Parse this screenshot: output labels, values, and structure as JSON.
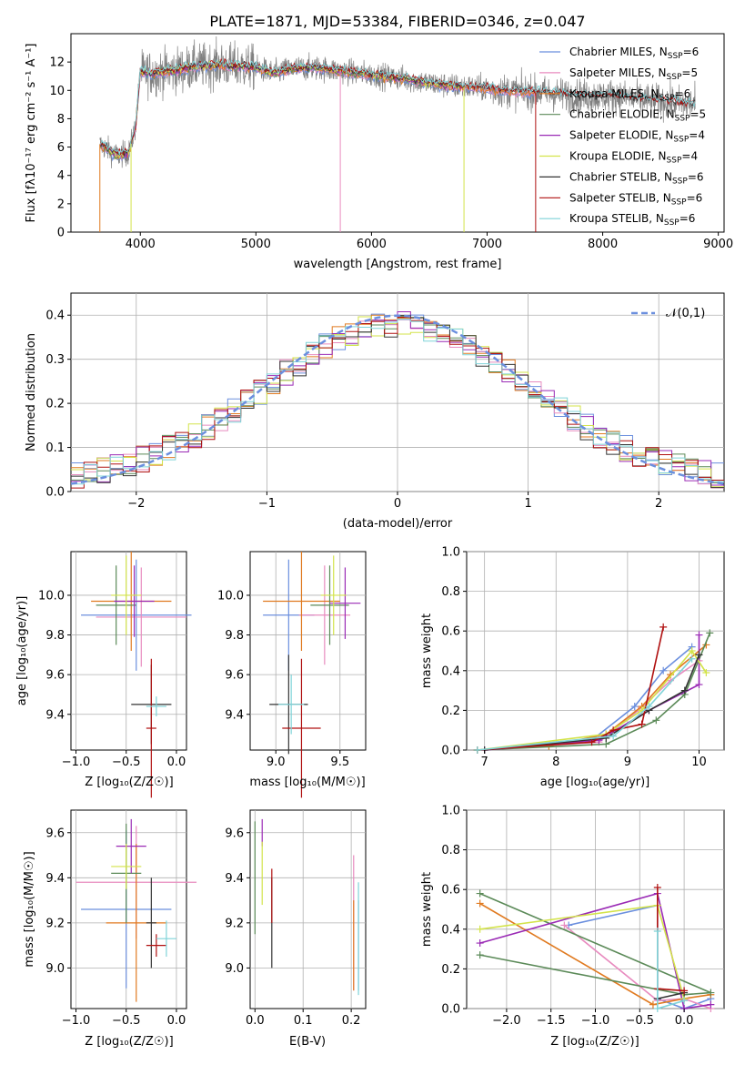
{
  "chart_data": [
    {
      "id": "spectrum",
      "type": "line",
      "title": "PLATE=1871, MJD=53384, FIBERID=0346, z=0.047",
      "xlabel": "wavelength [Angstrom, rest frame]",
      "ylabel": "Flux [fλ10⁻¹⁷ erg cm⁻² s⁻¹ A⁻¹]",
      "xlim": [
        3400,
        9050
      ],
      "ylim": [
        0,
        14
      ],
      "xticks": [
        4000,
        5000,
        6000,
        7000,
        8000,
        9000
      ],
      "yticks": [
        0,
        2,
        4,
        6,
        8,
        10,
        12
      ],
      "legend_position": "right",
      "data_line": {
        "color": "#808080",
        "lambda_range": [
          3650,
          8800
        ]
      },
      "continuum_points": [
        [
          3650,
          6.2
        ],
        [
          3800,
          5.4
        ],
        [
          3900,
          5.6
        ],
        [
          3960,
          7.5
        ],
        [
          4000,
          11.3
        ],
        [
          4100,
          11.2
        ],
        [
          4300,
          11.4
        ],
        [
          4500,
          11.7
        ],
        [
          4700,
          11.8
        ],
        [
          4850,
          11.7
        ],
        [
          5000,
          11.6
        ],
        [
          5150,
          11.2
        ],
        [
          5300,
          11.5
        ],
        [
          5500,
          11.6
        ],
        [
          5700,
          11.4
        ],
        [
          5900,
          11.2
        ],
        [
          6100,
          11.0
        ],
        [
          6300,
          10.8
        ],
        [
          6500,
          10.5
        ],
        [
          6700,
          10.3
        ],
        [
          6900,
          10.2
        ],
        [
          7100,
          10.0
        ],
        [
          7300,
          9.9
        ],
        [
          7500,
          9.8
        ],
        [
          7800,
          9.6
        ],
        [
          8100,
          9.6
        ],
        [
          8400,
          9.3
        ],
        [
          8800,
          9.0
        ]
      ],
      "model_gaps": [
        {
          "series": 2,
          "lambda": 3650
        },
        {
          "series": 5,
          "lambda": 3920
        },
        {
          "series": 1,
          "lambda": 5730
        },
        {
          "series": 5,
          "lambda": 6800
        },
        {
          "series": 7,
          "lambda": 7420
        }
      ],
      "series": [
        {
          "name": "Chabrier MILES",
          "nssp": "6",
          "color": "#6b8fde",
          "end": 7420
        },
        {
          "name": "Salpeter MILES",
          "nssp": "5",
          "color": "#e88bbf",
          "end": 7420
        },
        {
          "name": "Kroupa MILES",
          "nssp": "6",
          "color": "#e07a20",
          "end": 7420
        },
        {
          "name": "Chabrier ELODIE",
          "nssp": "5",
          "color": "#5b8a58",
          "end": 6800
        },
        {
          "name": "Salpeter ELODIE",
          "nssp": "4",
          "color": "#9a2ab5",
          "end": 6800
        },
        {
          "name": "Kroupa ELODIE",
          "nssp": "4",
          "color": "#d3e34a",
          "end": 6800
        },
        {
          "name": "Chabrier STELIB",
          "nssp": "6",
          "color": "#333333",
          "end": 8800
        },
        {
          "name": "Salpeter STELIB",
          "nssp": "6",
          "color": "#b01010",
          "end": 8800
        },
        {
          "name": "Kroupa STELIB",
          "nssp": "6",
          "color": "#7fd3d8",
          "end": 8800
        }
      ]
    },
    {
      "id": "residual-histogram",
      "type": "line",
      "xlabel": "(data-model)/error",
      "ylabel": "Normed distribution",
      "xlim": [
        -2.5,
        2.5
      ],
      "ylim": [
        0,
        0.45
      ],
      "xticks": [
        -2,
        -1,
        0,
        1,
        2
      ],
      "yticks": [
        0.0,
        0.1,
        0.2,
        0.3,
        0.4
      ],
      "grid": true,
      "legend_position": "top-right",
      "reference_curve": {
        "label": "𝒩(0,1)",
        "color": "#6b8fde",
        "style": "dashed"
      },
      "bin_width": 0.1,
      "bin_start": -2.5
    },
    {
      "id": "age-vs-Z",
      "type": "scatter",
      "xlabel": "Z [log₁₀(Z/Z☉)]",
      "ylabel": "age  [log₁₀(age/yr)]",
      "xlim": [
        -1.05,
        0.1
      ],
      "ylim": [
        9.22,
        10.22
      ],
      "xticks": [
        -1.0,
        -0.5,
        0.0
      ],
      "yticks": [
        9.4,
        9.6,
        9.8,
        10.0
      ],
      "grid": true,
      "points": [
        {
          "series": 0,
          "x": -0.4,
          "xerr": 0.55,
          "y": 9.9,
          "yerr": 0.28
        },
        {
          "series": 1,
          "x": -0.35,
          "xerr": 0.45,
          "y": 9.89,
          "yerr": 0.25
        },
        {
          "series": 2,
          "x": -0.45,
          "xerr": 0.4,
          "y": 9.97,
          "yerr": 0.25
        },
        {
          "series": 3,
          "x": -0.6,
          "xerr": 0.2,
          "y": 9.95,
          "yerr": 0.2
        },
        {
          "series": 4,
          "x": -0.42,
          "xerr": 0.2,
          "y": 9.97,
          "yerr": 0.18
        },
        {
          "series": 5,
          "x": -0.5,
          "xerr": 0.15,
          "y": 10.0,
          "yerr": 0.2
        },
        {
          "series": 6,
          "x": -0.25,
          "xerr": 0.2,
          "y": 9.45,
          "yerr": 0.2
        },
        {
          "series": 7,
          "x": -0.25,
          "xerr": 0.05,
          "y": 9.33,
          "yerr": 0.35
        },
        {
          "series": 8,
          "x": -0.2,
          "xerr": 0.1,
          "y": 9.44,
          "yerr": 0.05
        }
      ]
    },
    {
      "id": "age-vs-mass",
      "type": "scatter",
      "xlabel": "mass [log₁₀(M/M☉)]",
      "ylabel": "",
      "xlim": [
        8.8,
        9.7
      ],
      "ylim": [
        9.22,
        10.22
      ],
      "xticks": [
        9.0,
        9.5
      ],
      "yticks": [
        9.4,
        9.6,
        9.8,
        10.0
      ],
      "grid": true,
      "points": [
        {
          "series": 0,
          "x": 9.1,
          "xerr": 0.2,
          "y": 9.9,
          "yerr": 0.28
        },
        {
          "series": 1,
          "x": 9.38,
          "xerr": 0.2,
          "y": 9.9,
          "yerr": 0.25
        },
        {
          "series": 2,
          "x": 9.2,
          "xerr": 0.3,
          "y": 9.97,
          "yerr": 0.25
        },
        {
          "series": 3,
          "x": 9.42,
          "xerr": 0.15,
          "y": 9.95,
          "yerr": 0.2
        },
        {
          "series": 4,
          "x": 9.54,
          "xerr": 0.12,
          "y": 9.96,
          "yerr": 0.18
        },
        {
          "series": 5,
          "x": 9.45,
          "xerr": 0.1,
          "y": 10.0,
          "yerr": 0.2
        },
        {
          "series": 6,
          "x": 9.1,
          "xerr": 0.15,
          "y": 9.45,
          "yerr": 0.25
        },
        {
          "series": 7,
          "x": 9.2,
          "xerr": 0.15,
          "y": 9.33,
          "yerr": 0.35
        },
        {
          "series": 8,
          "x": 9.12,
          "xerr": 0.1,
          "y": 9.45,
          "yerr": 0.15
        }
      ]
    },
    {
      "id": "mass-weight-vs-age",
      "type": "line",
      "xlabel": "age  [log₁₀(age/yr)]",
      "ylabel": "mass weight",
      "xlim": [
        6.75,
        10.35
      ],
      "ylim": [
        0,
        1.0
      ],
      "xticks": [
        7,
        8,
        9,
        10
      ],
      "yticks": [
        0.0,
        0.2,
        0.4,
        0.6,
        0.8,
        1.0
      ],
      "grid": true,
      "series": [
        {
          "series": 0,
          "points": [
            [
              6.9,
              0.0
            ],
            [
              8.5,
              0.05
            ],
            [
              9.1,
              0.22
            ],
            [
              9.5,
              0.4
            ],
            [
              9.9,
              0.52
            ]
          ]
        },
        {
          "series": 1,
          "points": [
            [
              6.9,
              0.0
            ],
            [
              8.6,
              0.04
            ],
            [
              9.15,
              0.2
            ],
            [
              9.6,
              0.35
            ],
            [
              10.0,
              0.45
            ]
          ]
        },
        {
          "series": 2,
          "points": [
            [
              6.9,
              0.0
            ],
            [
              7.9,
              0.02
            ],
            [
              8.7,
              0.08
            ],
            [
              9.2,
              0.22
            ],
            [
              9.6,
              0.38
            ],
            [
              10.1,
              0.53
            ]
          ]
        },
        {
          "series": 3,
          "points": [
            [
              6.9,
              0.0
            ],
            [
              8.7,
              0.03
            ],
            [
              9.4,
              0.15
            ],
            [
              9.8,
              0.28
            ],
            [
              10.15,
              0.59
            ]
          ]
        },
        {
          "series": 4,
          "points": [
            [
              7.0,
              0.0
            ],
            [
              8.6,
              0.05
            ],
            [
              9.3,
              0.2
            ],
            [
              10.0,
              0.33
            ],
            [
              10.0,
              0.58
            ]
          ]
        },
        {
          "series": 5,
          "points": [
            [
              6.9,
              0.0
            ],
            [
              8.7,
              0.08
            ],
            [
              9.2,
              0.2
            ],
            [
              9.9,
              0.5
            ],
            [
              10.1,
              0.39
            ]
          ]
        },
        {
          "series": 6,
          "points": [
            [
              7.0,
              0.0
            ],
            [
              8.7,
              0.06
            ],
            [
              9.3,
              0.2
            ],
            [
              9.8,
              0.3
            ],
            [
              10.0,
              0.48
            ]
          ]
        },
        {
          "series": 7,
          "points": [
            [
              6.9,
              0.0
            ],
            [
              8.5,
              0.04
            ],
            [
              8.8,
              0.1
            ],
            [
              9.2,
              0.13
            ],
            [
              9.5,
              0.62
            ]
          ]
        },
        {
          "series": 8,
          "points": [
            [
              6.9,
              0.0
            ],
            [
              8.8,
              0.07
            ],
            [
              9.3,
              0.22
            ],
            [
              9.9,
              0.46
            ]
          ]
        }
      ]
    },
    {
      "id": "mass-vs-Z",
      "type": "scatter",
      "xlabel": "Z [log₁₀(Z/Z☉)]",
      "ylabel": "mass [log₁₀(M/M☉)]",
      "xlim": [
        -1.05,
        0.1
      ],
      "ylim": [
        8.82,
        9.7
      ],
      "xticks": [
        -1.0,
        -0.5,
        0.0
      ],
      "yticks": [
        9.0,
        9.2,
        9.4,
        9.6
      ],
      "grid": true,
      "points": [
        {
          "series": 0,
          "x": -0.5,
          "xerr": 0.45,
          "y": 9.26,
          "yerr": 0.35
        },
        {
          "series": 1,
          "x": -0.4,
          "xerr": 0.6,
          "y": 9.38,
          "yerr": 0.25
        },
        {
          "series": 2,
          "x": -0.4,
          "xerr": 0.3,
          "y": 9.2,
          "yerr": 0.35
        },
        {
          "series": 3,
          "x": -0.5,
          "xerr": 0.15,
          "y": 9.42,
          "yerr": 0.22
        },
        {
          "series": 4,
          "x": -0.45,
          "xerr": 0.15,
          "y": 9.54,
          "yerr": 0.12
        },
        {
          "series": 5,
          "x": -0.5,
          "xerr": 0.15,
          "y": 9.45,
          "yerr": 0.1
        },
        {
          "series": 6,
          "x": -0.25,
          "xerr": 0.05,
          "y": 9.2,
          "yerr": 0.2
        },
        {
          "series": 7,
          "x": -0.2,
          "xerr": 0.1,
          "y": 9.1,
          "yerr": 0.05
        },
        {
          "series": 8,
          "x": -0.1,
          "xerr": 0.1,
          "y": 9.13,
          "yerr": 0.08
        }
      ]
    },
    {
      "id": "mass-vs-EBV",
      "type": "scatter",
      "xlabel": "E(B-V)",
      "ylabel": "",
      "xlim": [
        -0.01,
        0.23
      ],
      "ylim": [
        8.82,
        9.7
      ],
      "xticks": [
        0.0,
        0.1,
        0.2
      ],
      "yticks": [
        9.0,
        9.2,
        9.4,
        9.6
      ],
      "grid": true,
      "points": [
        {
          "series": 0,
          "x": 0.215,
          "y": 9.1,
          "yerr": 0.2
        },
        {
          "series": 1,
          "x": 0.205,
          "y": 9.2,
          "yerr": 0.3
        },
        {
          "series": 2,
          "x": 0.205,
          "y": 9.1,
          "yerr": 0.2
        },
        {
          "series": 3,
          "x": 0.0,
          "y": 9.4,
          "yerr": 0.25
        },
        {
          "series": 4,
          "x": 0.015,
          "y": 9.6,
          "yerr": 0.06
        },
        {
          "series": 5,
          "x": 0.015,
          "y": 9.42,
          "yerr": 0.14
        },
        {
          "series": 6,
          "x": 0.035,
          "y": 9.2,
          "yerr": 0.2
        },
        {
          "series": 7,
          "x": 0.035,
          "y": 9.32,
          "yerr": 0.12
        },
        {
          "series": 8,
          "x": 0.215,
          "y": 9.13,
          "yerr": 0.25
        }
      ]
    },
    {
      "id": "mass-weight-vs-Z",
      "type": "line",
      "xlabel": "Z [log₁₀(Z/Z☉)]",
      "ylabel": "mass weight",
      "xlim": [
        -2.45,
        0.45
      ],
      "ylim": [
        0,
        1.0
      ],
      "xticks": [
        -2.0,
        -1.5,
        -1.0,
        -0.5,
        0.0
      ],
      "yticks": [
        0.0,
        0.2,
        0.4,
        0.6,
        0.8,
        1.0
      ],
      "grid": true,
      "series": [
        {
          "series": 0,
          "points": [
            [
              -1.3,
              0.42
            ],
            [
              -0.3,
              0.52
            ],
            [
              -0.3,
              0.05
            ],
            [
              0.0,
              0.0
            ],
            [
              0.3,
              0.05
            ]
          ]
        },
        {
          "series": 1,
          "points": [
            [
              -1.35,
              0.42
            ],
            [
              -0.3,
              0.04
            ],
            [
              0.0,
              0.05
            ],
            [
              0.3,
              0.0
            ]
          ]
        },
        {
          "series": 2,
          "points": [
            [
              -2.3,
              0.53
            ],
            [
              -0.35,
              0.02
            ],
            [
              0.0,
              0.05
            ],
            [
              0.3,
              0.07
            ]
          ]
        },
        {
          "series": 3,
          "points": [
            [
              -2.3,
              0.27
            ],
            [
              0.0,
              0.07
            ],
            [
              0.3,
              0.08
            ],
            [
              -2.3,
              0.58
            ]
          ]
        },
        {
          "series": 4,
          "points": [
            [
              -2.3,
              0.33
            ],
            [
              -0.3,
              0.58
            ],
            [
              0.0,
              0.0
            ],
            [
              0.3,
              0.02
            ]
          ]
        },
        {
          "series": 5,
          "points": [
            [
              -2.3,
              0.4
            ],
            [
              -0.3,
              0.52
            ],
            [
              0.0,
              0.05
            ]
          ]
        },
        {
          "series": 6,
          "points": [
            [
              -0.3,
              0.05
            ],
            [
              0.0,
              0.08
            ]
          ]
        },
        {
          "series": 7,
          "points": [
            [
              -0.3,
              0.61
            ],
            [
              -0.3,
              0.1
            ],
            [
              0.0,
              0.09
            ]
          ]
        },
        {
          "series": 8,
          "points": [
            [
              -0.3,
              0.39
            ],
            [
              -0.3,
              0.0
            ],
            [
              0.0,
              0.04
            ]
          ]
        }
      ]
    }
  ]
}
